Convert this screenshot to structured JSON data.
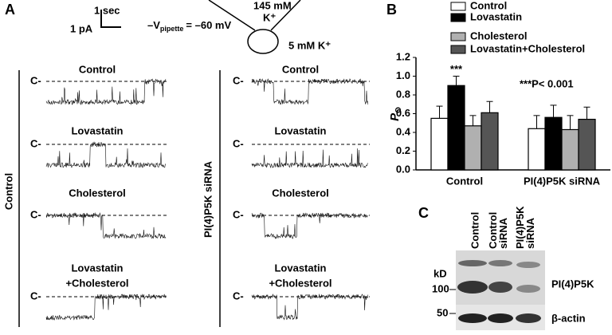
{
  "panel_a": {
    "label": "A",
    "time_scale": "1 sec",
    "current_scale": "1 pA",
    "holding_symbol": "–V",
    "holding_subscript": "pipette",
    "holding_value": "= –60 mV",
    "pipette_k": "145 mM",
    "pipette_ion": "K⁺",
    "bath_k": "5 mM K⁺",
    "closed_marker": "C-",
    "groups": [
      {
        "label": "Control",
        "traces": [
          {
            "title": [
              "Control"
            ]
          },
          {
            "title": [
              "Lovastatin"
            ]
          },
          {
            "title": [
              "Cholesterol"
            ]
          },
          {
            "title": [
              "Lovastatin",
              "+Cholesterol"
            ]
          }
        ]
      },
      {
        "label": "PI(4)P5K siRNA",
        "traces": [
          {
            "title": [
              "Control"
            ]
          },
          {
            "title": [
              "Lovastatin"
            ]
          },
          {
            "title": [
              "Cholesterol"
            ]
          },
          {
            "title": [
              "Lovastatin",
              "+Cholesterol"
            ]
          }
        ]
      }
    ]
  },
  "chart_data": {
    "type": "bar",
    "panel_label": "B",
    "categories": [
      "Control",
      "PI(4)P5K siRNA"
    ],
    "series": [
      {
        "name": "Control",
        "color": "#ffffff",
        "values": [
          0.55,
          0.44
        ],
        "errors": [
          0.13,
          0.14
        ]
      },
      {
        "name": "Lovastatin",
        "color": "#000000",
        "values": [
          0.9,
          0.56
        ],
        "errors": [
          0.1,
          0.13
        ]
      },
      {
        "name": "Cholesterol",
        "color": "#b0b0b0",
        "values": [
          0.47,
          0.43
        ],
        "errors": [
          0.11,
          0.15
        ]
      },
      {
        "name": "Lovastatin+Cholesterol",
        "color": "#555555",
        "values": [
          0.61,
          0.54
        ],
        "errors": [
          0.12,
          0.13
        ]
      }
    ],
    "y_label": "P",
    "y_label_subscript": "O",
    "ylim": [
      0,
      1.2
    ],
    "yticks": [
      {
        "value": 0,
        "label": "0.0"
      },
      {
        "value": 0.2,
        "label": "0.2"
      },
      {
        "value": 0.4,
        "label": "0.4"
      },
      {
        "value": 0.6,
        "label": "0.6"
      },
      {
        "value": 0.8,
        "label": "0.8"
      },
      {
        "value": 1,
        "label": "1.0"
      },
      {
        "value": 1.2,
        "label": "1.2"
      }
    ],
    "annotations": [
      "***",
      "***P< 0.001"
    ]
  },
  "panel_c": {
    "label": "C",
    "lanes": [
      "Control",
      "Control siRNA",
      "PI(4)P5K siRNA"
    ],
    "unit": "kD",
    "markers": [
      "100",
      "50"
    ],
    "bands": [
      "PI(4)P5K",
      "β-actin"
    ]
  }
}
